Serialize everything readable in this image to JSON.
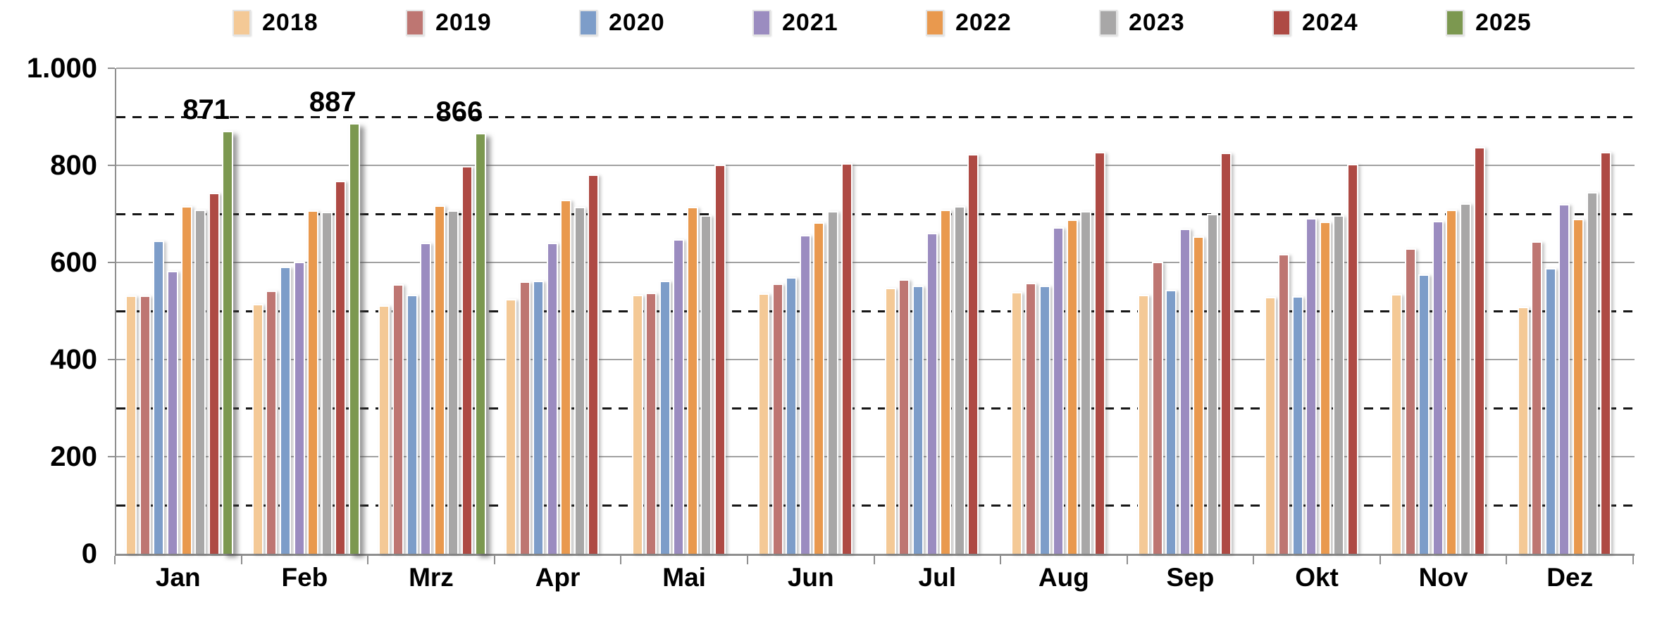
{
  "chart_data": {
    "type": "bar",
    "title": "",
    "xlabel": "",
    "ylabel": "",
    "categories": [
      "Jan",
      "Feb",
      "Mrz",
      "Apr",
      "Mai",
      "Jun",
      "Jul",
      "Aug",
      "Sep",
      "Okt",
      "Nov",
      "Dez"
    ],
    "series": [
      {
        "name": "2018",
        "color": "#F4C996",
        "values": [
          532,
          514,
          511,
          525,
          533,
          536,
          548,
          539,
          534,
          529,
          535,
          508
        ]
      },
      {
        "name": "2019",
        "color": "#BE7672",
        "values": [
          532,
          542,
          555,
          561,
          538,
          557,
          565,
          558,
          601,
          617,
          629,
          643
        ]
      },
      {
        "name": "2020",
        "color": "#7D9DC9",
        "values": [
          645,
          591,
          534,
          562,
          563,
          570,
          552,
          552,
          543,
          531,
          576,
          589
        ]
      },
      {
        "name": "2021",
        "color": "#9B8CC0",
        "values": [
          583,
          601,
          640,
          641,
          648,
          657,
          661,
          673,
          670,
          691,
          685,
          721
        ]
      },
      {
        "name": "2022",
        "color": "#E9994E",
        "values": [
          716,
          707,
          717,
          729,
          715,
          682,
          709,
          688,
          653,
          684,
          709,
          690
        ]
      },
      {
        "name": "2023",
        "color": "#A8A7A7",
        "values": [
          709,
          704,
          707,
          715,
          697,
          706,
          716,
          706,
          700,
          697,
          722,
          745
        ]
      },
      {
        "name": "2024",
        "color": "#AE4A44",
        "values": [
          743,
          768,
          799,
          781,
          801,
          805,
          823,
          828,
          826,
          803,
          838,
          827
        ]
      },
      {
        "name": "2025",
        "color": "#7C9850",
        "values": [
          871,
          887,
          866,
          null,
          null,
          null,
          null,
          null,
          null,
          null,
          null,
          null
        ],
        "show_labels": true
      }
    ],
    "annotations": [
      {
        "text": "871",
        "category": "Jan",
        "series": "2025"
      },
      {
        "text": "887",
        "category": "Feb",
        "series": "2025"
      },
      {
        "text": "866",
        "category": "Mrz",
        "series": "2025"
      }
    ],
    "y_axis": {
      "min": 0,
      "max": 1000,
      "ticks": [
        {
          "value": 0,
          "label": "0"
        },
        {
          "value": 200,
          "label": "200"
        },
        {
          "value": 400,
          "label": "400"
        },
        {
          "value": 600,
          "label": "600"
        },
        {
          "value": 800,
          "label": "800"
        },
        {
          "value": 1000,
          "label": "1.000"
        }
      ],
      "solid_gridline_interval": 200,
      "dashed_gridline_interval": 100
    },
    "legend_position": "top",
    "grid": true
  }
}
